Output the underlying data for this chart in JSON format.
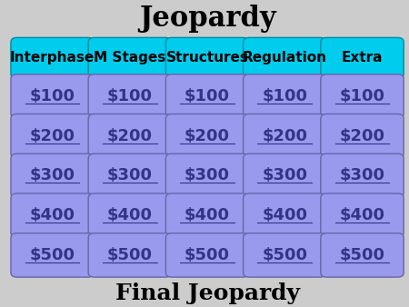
{
  "title": "Jeopardy",
  "footer": "Final Jeopardy",
  "categories": [
    "Interphase",
    "M Stages",
    "Structures",
    "Regulation",
    "Extra"
  ],
  "amounts": [
    "$100",
    "$200",
    "$300",
    "$400",
    "$500"
  ],
  "header_color": "#00CCEE",
  "cell_color": "#9999EE",
  "header_text_color": "#000000",
  "cell_text_color": "#333388",
  "background_color": "#CCCCCC",
  "title_fontsize": 22,
  "header_fontsize": 11,
  "cell_fontsize": 13,
  "footer_fontsize": 18
}
